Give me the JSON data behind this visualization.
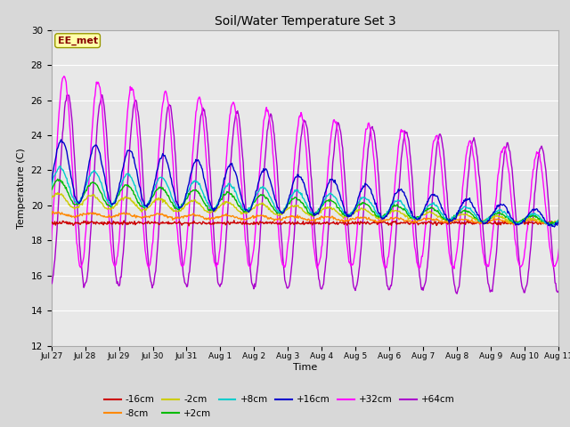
{
  "title": "Soil/Water Temperature Set 3",
  "xlabel": "Time",
  "ylabel": "Temperature (C)",
  "ylim": [
    12,
    30
  ],
  "yticks": [
    12,
    14,
    16,
    18,
    20,
    22,
    24,
    26,
    28,
    30
  ],
  "annotation_text": "EE_met",
  "fig_bg": "#d8d8d8",
  "plot_bg": "#e8e8e8",
  "series": {
    "-16cm": {
      "color": "#cc0000"
    },
    "-8cm": {
      "color": "#ff8800"
    },
    "-2cm": {
      "color": "#cccc00"
    },
    "+2cm": {
      "color": "#00bb00"
    },
    "+8cm": {
      "color": "#00cccc"
    },
    "+16cm": {
      "color": "#0000cc"
    },
    "+32cm": {
      "color": "#ff00ff"
    },
    "+64cm": {
      "color": "#aa00cc"
    }
  },
  "xtick_labels": [
    "Jul 27",
    "Jul 28",
    "Jul 29",
    "Jul 30",
    "Jul 31",
    "Aug 1",
    "Aug 2",
    "Aug 3",
    "Aug 4",
    "Aug 5",
    "Aug 6",
    "Aug 7",
    "Aug 8",
    "Aug 9",
    "Aug 10",
    "Aug 11"
  ],
  "num_days": 16,
  "pts_per_day": 48
}
